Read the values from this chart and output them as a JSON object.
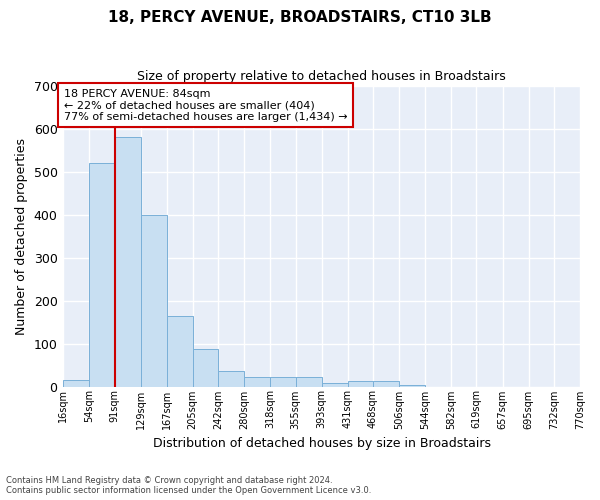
{
  "title": "18, PERCY AVENUE, BROADSTAIRS, CT10 3LB",
  "subtitle": "Size of property relative to detached houses in Broadstairs",
  "xlabel": "Distribution of detached houses by size in Broadstairs",
  "ylabel": "Number of detached properties",
  "bar_color": "#c8dff2",
  "bar_edge_color": "#7ab0d8",
  "background_color": "#e8eef8",
  "grid_color": "#ffffff",
  "bins": [
    16,
    54,
    91,
    129,
    167,
    205,
    242,
    280,
    318,
    355,
    393,
    431,
    468,
    506,
    544,
    582,
    619,
    657,
    695,
    732,
    770
  ],
  "bin_labels": [
    "16sqm",
    "54sqm",
    "91sqm",
    "129sqm",
    "167sqm",
    "205sqm",
    "242sqm",
    "280sqm",
    "318sqm",
    "355sqm",
    "393sqm",
    "431sqm",
    "468sqm",
    "506sqm",
    "544sqm",
    "582sqm",
    "619sqm",
    "657sqm",
    "695sqm",
    "732sqm",
    "770sqm"
  ],
  "values": [
    14,
    520,
    580,
    400,
    163,
    88,
    36,
    22,
    23,
    23,
    8,
    12,
    12,
    3,
    0,
    0,
    0,
    0,
    0,
    0
  ],
  "red_line_x": 91,
  "annotation_title": "18 PERCY AVENUE: 84sqm",
  "annotation_line1": "← 22% of detached houses are smaller (404)",
  "annotation_line2": "77% of semi-detached houses are larger (1,434) →",
  "ylim": [
    0,
    700
  ],
  "yticks": [
    0,
    100,
    200,
    300,
    400,
    500,
    600,
    700
  ],
  "footer_line1": "Contains HM Land Registry data © Crown copyright and database right 2024.",
  "footer_line2": "Contains public sector information licensed under the Open Government Licence v3.0."
}
